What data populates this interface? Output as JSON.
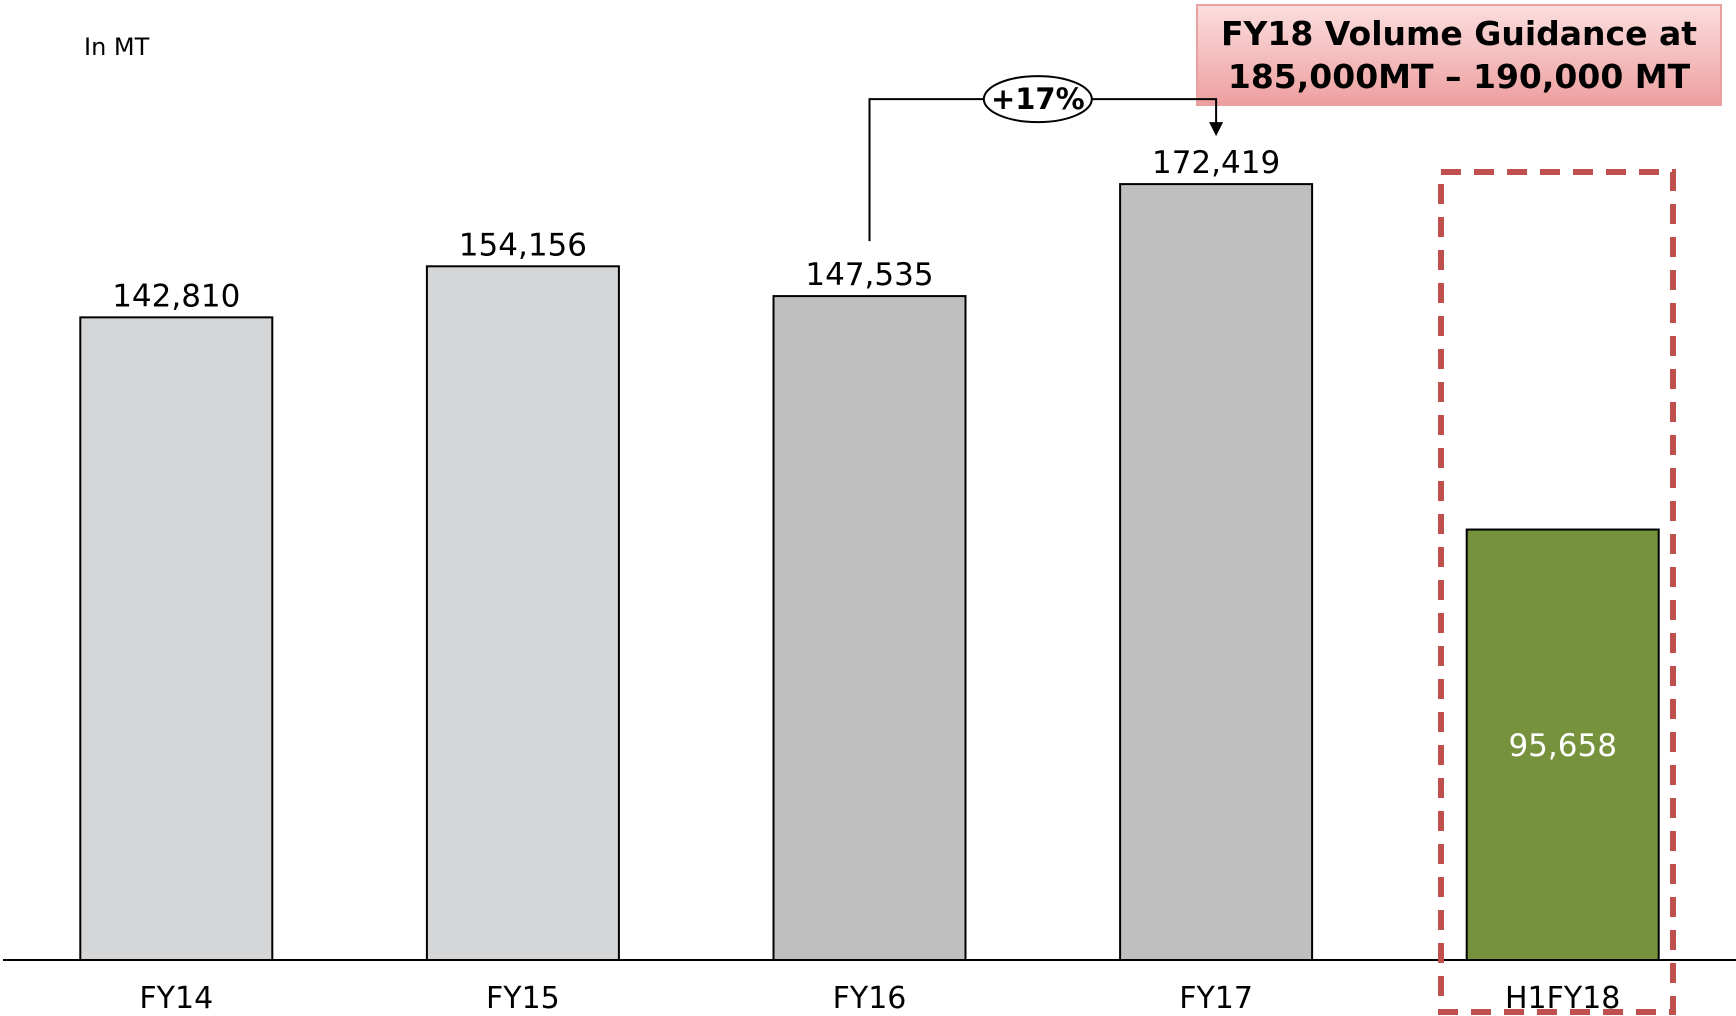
{
  "unit_label": "In MT",
  "guidance": {
    "line1": "FY18 Volume Guidance at",
    "line2": "185,000MT – 190,000 MT"
  },
  "growth": {
    "label": "+17%",
    "from": "FY16",
    "to": "FY17"
  },
  "colors": {
    "light_grey": "#d5d6d8",
    "mid_grey": "#bfbfbf",
    "green": "#76923c",
    "highlight_red": "#c0504d",
    "callout_fill": "#f2b2b2"
  },
  "chart_data": {
    "type": "bar",
    "categories": [
      "FY14",
      "FY15",
      "FY16",
      "FY17",
      "H1FY18"
    ],
    "values": [
      142810,
      154156,
      147535,
      172419,
      95658
    ],
    "value_labels": [
      "142,810",
      "154,156",
      "147,535",
      "172,419",
      "95,658"
    ],
    "bar_colors": [
      "#d5d6d8",
      "#d5d6d8",
      "#bfbfbf",
      "#bfbfbf",
      "#76923c"
    ],
    "highlighted_category": "H1FY18",
    "ylim": [
      0,
      200000
    ],
    "grid": false,
    "legend": "none"
  }
}
